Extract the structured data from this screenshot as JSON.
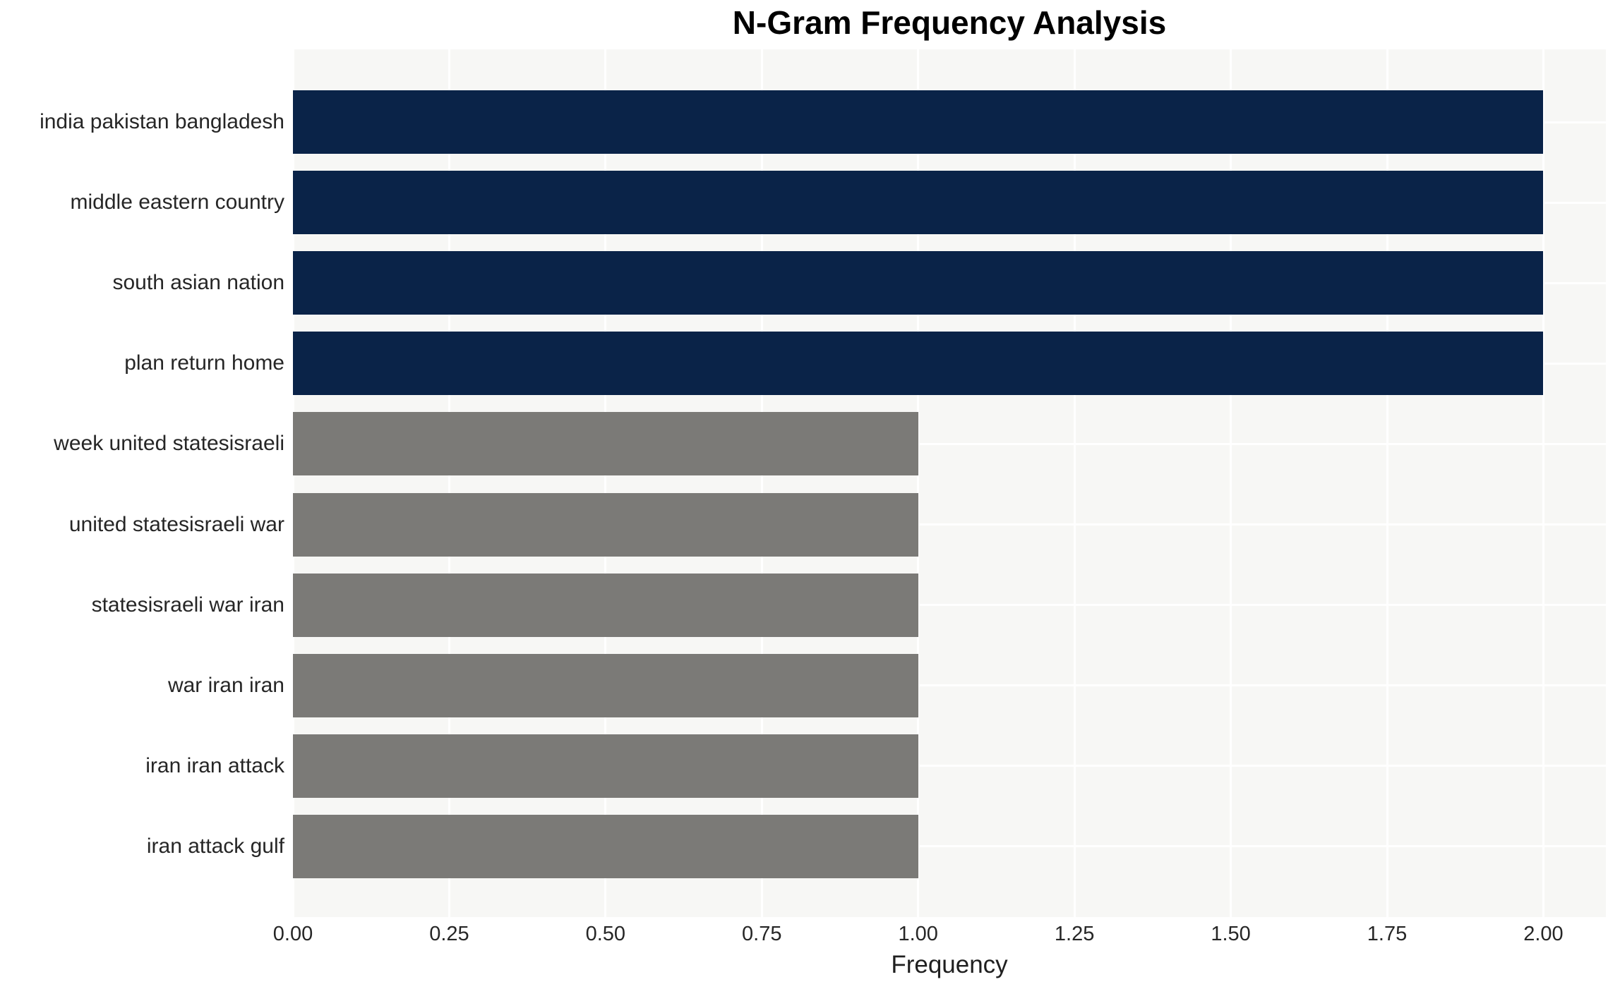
{
  "chart_data": {
    "type": "bar",
    "orientation": "horizontal",
    "title": "N-Gram Frequency Analysis",
    "xlabel": "Frequency",
    "ylabel": "",
    "categories": [
      "india pakistan bangladesh",
      "middle eastern country",
      "south asian nation",
      "plan return home",
      "week united statesisraeli",
      "united statesisraeli war",
      "statesisraeli war iran",
      "war iran iran",
      "iran iran attack",
      "iran attack gulf"
    ],
    "values": [
      2,
      2,
      2,
      2,
      1,
      1,
      1,
      1,
      1,
      1
    ],
    "bar_colors": [
      "#0A2348",
      "#0A2348",
      "#0A2348",
      "#0A2348",
      "#7B7A77",
      "#7B7A77",
      "#7B7A77",
      "#7B7A77",
      "#7B7A77",
      "#7B7A77"
    ],
    "xticks": [
      "0.00",
      "0.25",
      "0.50",
      "0.75",
      "1.00",
      "1.25",
      "1.50",
      "1.75",
      "2.00"
    ],
    "xtick_values": [
      0,
      0.25,
      0.5,
      0.75,
      1.0,
      1.25,
      1.5,
      1.75,
      2.0
    ],
    "xlim": [
      0,
      2.1
    ],
    "grid": true,
    "legend": false,
    "colors": {
      "plot_background": "#F7F7F5",
      "gridline": "#FFFFFF",
      "title_text": "#000000",
      "tick_text": "#262626"
    }
  }
}
